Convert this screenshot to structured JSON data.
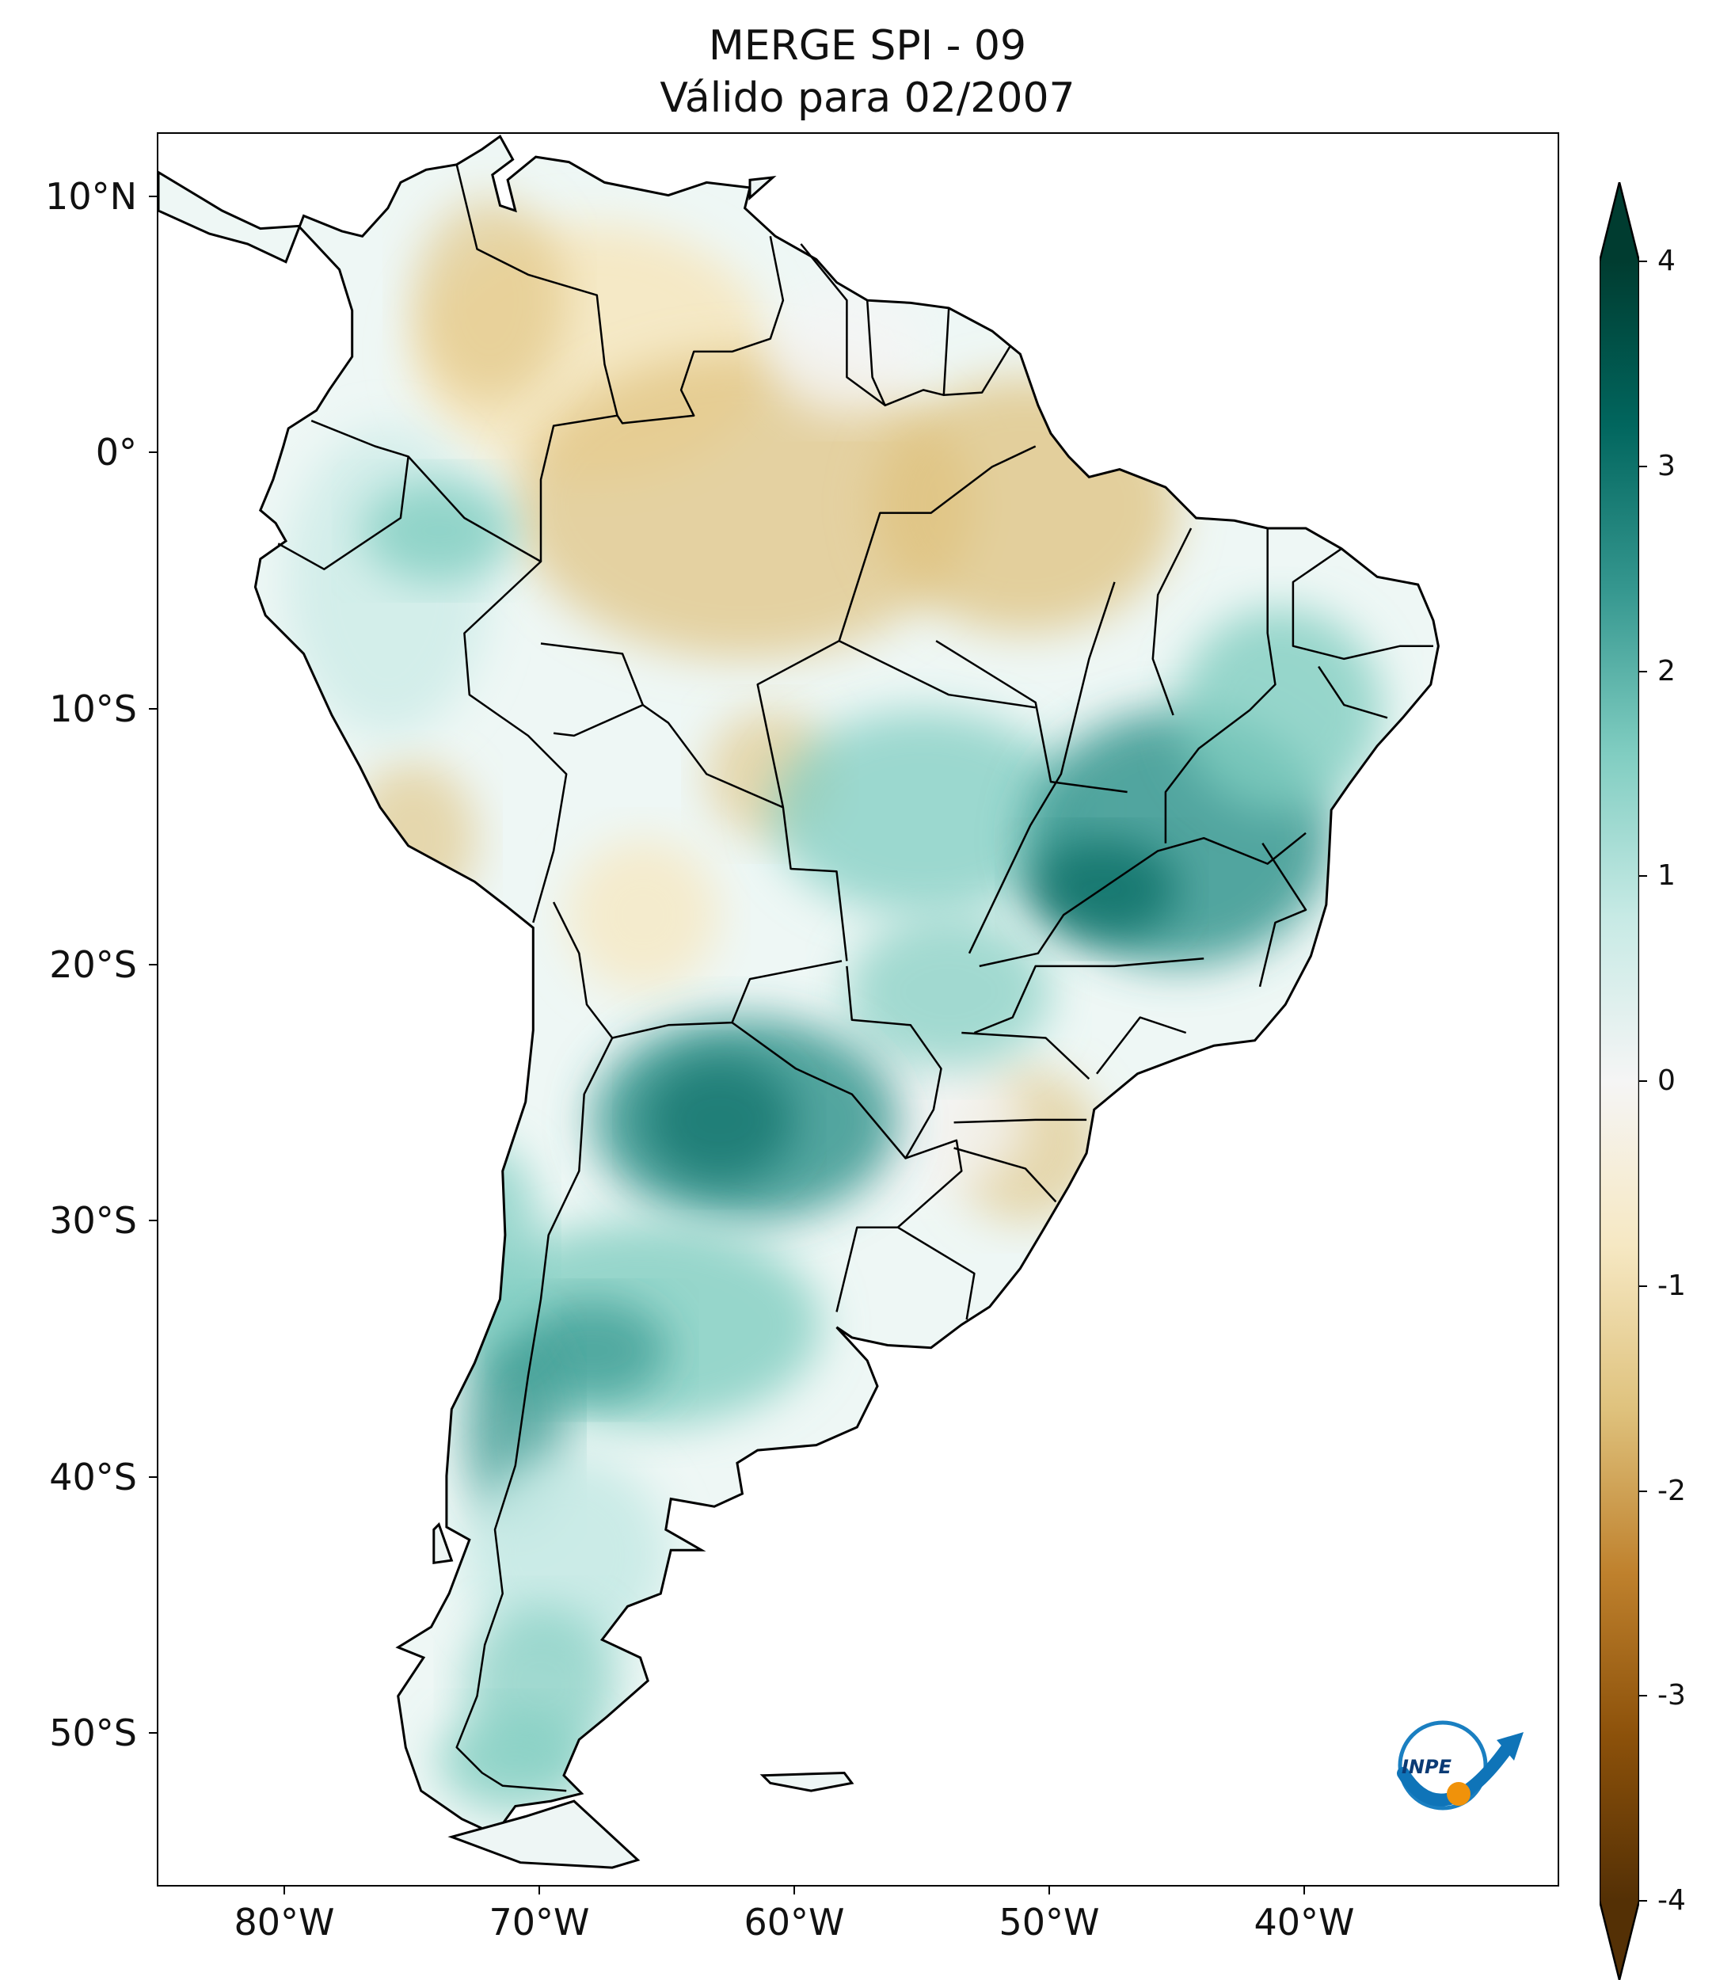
{
  "title": {
    "line1": "MERGE   SPI - 09",
    "line2": "Válido para 02/2007"
  },
  "map": {
    "region": "South America",
    "variable": "SPI - 09",
    "lon_range": [
      -85,
      -30
    ],
    "lat_range": [
      -56,
      12.5
    ],
    "lat_ticks": [
      {
        "value": 10,
        "label": "10°N"
      },
      {
        "value": 0,
        "label": "0°"
      },
      {
        "value": -10,
        "label": "10°S"
      },
      {
        "value": -20,
        "label": "20°S"
      },
      {
        "value": -30,
        "label": "30°S"
      },
      {
        "value": -40,
        "label": "40°S"
      },
      {
        "value": -50,
        "label": "50°S"
      }
    ],
    "lon_ticks": [
      {
        "value": -80,
        "label": "80°W"
      },
      {
        "value": -70,
        "label": "70°W"
      },
      {
        "value": -60,
        "label": "60°W"
      },
      {
        "value": -50,
        "label": "50°W"
      },
      {
        "value": -40,
        "label": "40°W"
      }
    ],
    "logo_icon": "inpe-logo-icon",
    "logo_text": "INPE"
  },
  "colorbar": {
    "min": -4,
    "max": 4,
    "extend": "both",
    "tick_labels": [
      "4",
      "3",
      "2",
      "1",
      "0",
      "-1",
      "-2",
      "-3",
      "-4"
    ],
    "colors": {
      "dry_extreme": "#543005",
      "dry_strong": "#8c510a",
      "dry_moderate": "#bf812d",
      "dry_mild": "#dfc27d",
      "dry_slight": "#f6e8c3",
      "neutral": "#f5f5f5",
      "wet_slight": "#c7eae5",
      "wet_mild": "#80cdc1",
      "wet_moderate": "#35978f",
      "wet_strong": "#01665e",
      "wet_extreme": "#003c30"
    }
  }
}
